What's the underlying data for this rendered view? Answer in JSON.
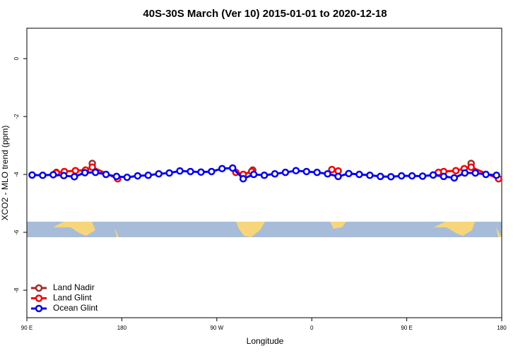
{
  "chart_data": {
    "type": "line",
    "title": "40S-30S March (Ver 10)   2015-01-01 to 2020-12-18",
    "x_label": "Longitude",
    "y_label": "XCO2 - MLO trend (ppm)",
    "xlim": [
      90,
      540
    ],
    "xticks": [
      {
        "value": 90,
        "label": "90 E"
      },
      180,
      {
        "value": 270,
        "label": "90 W"
      },
      {
        "value": 360,
        "label": "0"
      },
      {
        "value": 450,
        "label": "90 E"
      },
      {
        "value": 540,
        "label": "180"
      }
    ],
    "ylim": [
      -8.95,
      1.05
    ],
    "yticks": [
      0,
      -2,
      -4,
      -6,
      -8
    ],
    "legend": "bottom-left",
    "series": [
      {
        "name": "Land Nadir",
        "color": "#a52a2a",
        "x": [
          118,
          152,
          304,
          511
        ],
        "values": [
          -3.93,
          -3.62,
          -3.85,
          -3.62
        ]
      },
      {
        "name": "Land Glint",
        "color": "#ff0000",
        "x": [
          118,
          125.5,
          136,
          145.6,
          152,
          176,
          288,
          295,
          303,
          379,
          385,
          480,
          485,
          496.5,
          504.5,
          511,
          537
        ],
        "values": [
          -3.95,
          -3.9,
          -3.87,
          -3.85,
          -3.75,
          -4.15,
          -3.93,
          -4.0,
          -3.9,
          -3.83,
          -3.88,
          -3.93,
          -3.9,
          -3.87,
          -3.8,
          -3.75,
          -4.15
        ]
      },
      {
        "name": "Ocean Glint",
        "color": "#0000ff",
        "x": [
          95,
          105,
          115,
          125,
          135,
          145,
          155,
          165,
          175,
          185,
          195,
          205,
          215,
          225,
          235,
          245,
          255,
          265,
          275,
          285,
          295,
          305,
          315,
          325,
          335,
          345,
          355,
          365,
          375,
          385,
          395,
          405,
          415,
          425,
          435,
          445,
          455,
          465,
          475,
          485,
          495,
          505,
          515,
          525,
          535
        ],
        "values": [
          -4.02,
          -4.03,
          -4.01,
          -4.04,
          -4.08,
          -3.94,
          -3.93,
          -4.0,
          -4.07,
          -4.1,
          -4.05,
          -4.03,
          -3.98,
          -3.95,
          -3.88,
          -3.9,
          -3.92,
          -3.9,
          -3.8,
          -3.78,
          -4.15,
          -4.0,
          -4.03,
          -3.98,
          -3.93,
          -3.87,
          -3.9,
          -3.93,
          -3.98,
          -4.07,
          -3.97,
          -4.0,
          -4.03,
          -4.07,
          -4.08,
          -4.05,
          -4.05,
          -4.06,
          -4.02,
          -4.07,
          -4.12,
          -3.95,
          -3.95,
          -4.0,
          -4.03
        ]
      }
    ]
  }
}
